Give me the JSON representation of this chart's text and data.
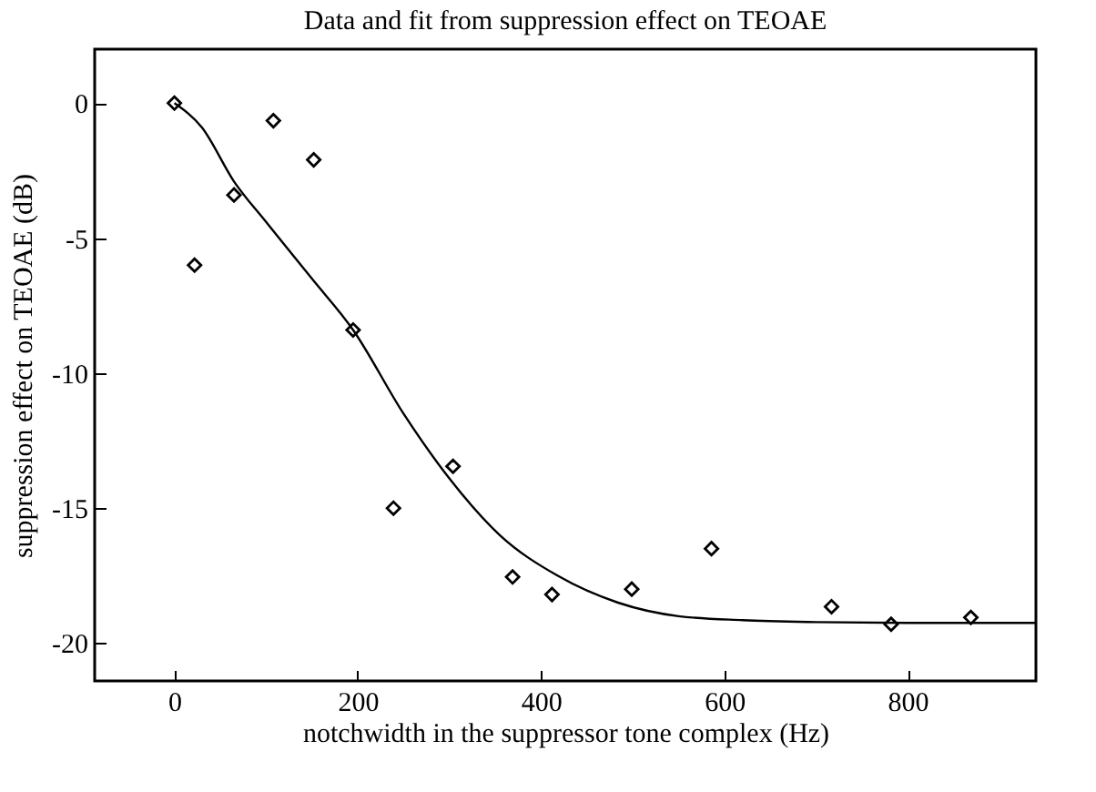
{
  "chart_data": {
    "type": "scatter",
    "title": "Data and fit from suppression effect on TEOAE",
    "xlabel": "notchwidth in the suppressor tone complex (Hz)",
    "ylabel": "suppression effect on TEOAE (dB)",
    "xlim": [
      -87,
      940
    ],
    "ylim": [
      -21.4,
      2
    ],
    "xticks": [
      0,
      200,
      400,
      600,
      800
    ],
    "yticks": [
      0,
      -5,
      -10,
      -15,
      -20
    ],
    "grid": false,
    "series": [
      {
        "marker": "diamond",
        "color": "#000000",
        "x": [
          0,
          22,
          65,
          108,
          152,
          195,
          239,
          304,
          369,
          412,
          499,
          586,
          717,
          782,
          869
        ],
        "values": [
          0,
          -6,
          -3.4,
          -0.65,
          -2.1,
          -8.4,
          -15,
          -13.45,
          -17.55,
          -18.2,
          -18,
          -16.5,
          -18.65,
          -19.3,
          -19.05
        ]
      },
      {
        "type": "line",
        "marker": "none",
        "line_style": "solid",
        "color": "#000000",
        "x": [
          0,
          30,
          65,
          100,
          150,
          195,
          250,
          300,
          355,
          418,
          484,
          550,
          620,
          700,
          800,
          940
        ],
        "values": [
          0,
          -0.9,
          -2.9,
          -4.4,
          -6.5,
          -8.4,
          -11.5,
          -13.9,
          -16,
          -17.5,
          -18.5,
          -19,
          -19.15,
          -19.22,
          -19.25,
          -19.25
        ]
      }
    ]
  }
}
